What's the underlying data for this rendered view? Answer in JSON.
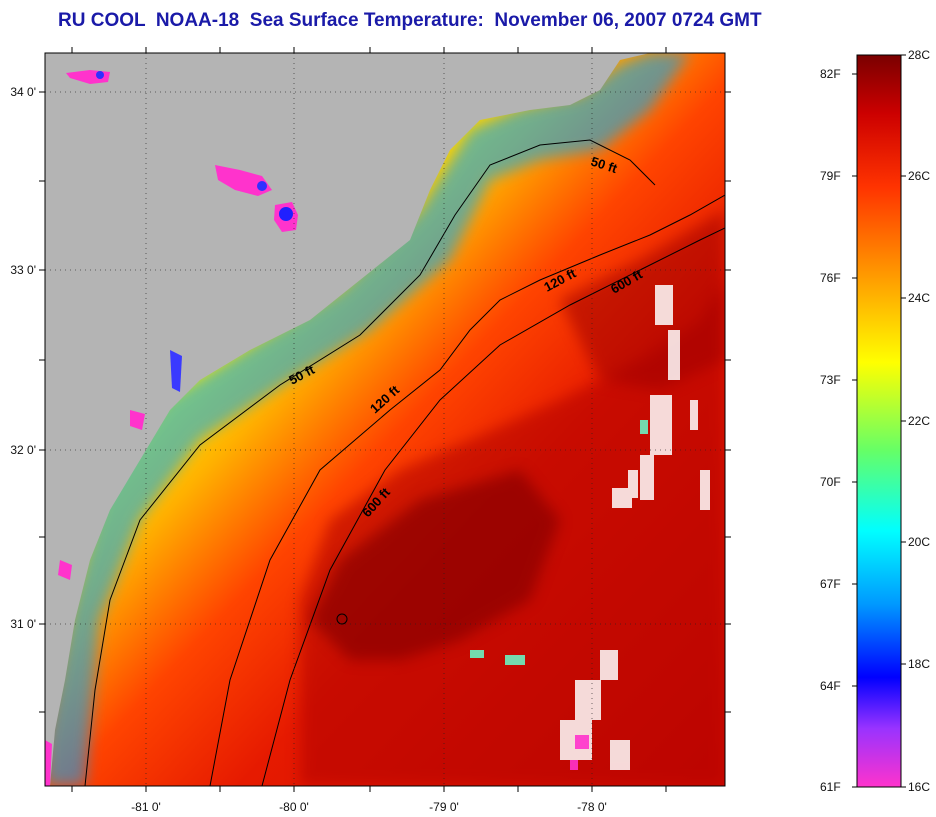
{
  "title": "RU COOL  NOAA-18  Sea Surface Temperature:  November 06, 2007 0724 GMT",
  "colors": {
    "land": "#b4b4b4",
    "warm_core": "#9a0000",
    "label_blue": "#1a1aa8"
  },
  "map": {
    "lat_labels": [
      "34 0'",
      "33 0'",
      "32 0'",
      "31 0'"
    ],
    "lon_labels": [
      "-81 0'",
      "-80 0'",
      "-79 0'",
      "-78 0'"
    ],
    "isobath_labels": [
      "50 ft",
      "50 ft",
      "120 ft",
      "120 ft",
      "600 ft",
      "600 ft"
    ]
  },
  "colorbar": {
    "fahrenheit": [
      "82F",
      "79F",
      "76F",
      "73F",
      "70F",
      "67F",
      "64F",
      "61F"
    ],
    "celsius": [
      "28C",
      "26C",
      "24C",
      "22C",
      "20C",
      "18C",
      "16C"
    ],
    "stops": [
      "#ff33cc",
      "#9933ff",
      "#0000ff",
      "#0099ff",
      "#00ffff",
      "#66ff66",
      "#ffff00",
      "#ff9900",
      "#ff3300",
      "#cc0000",
      "#7a0000"
    ]
  }
}
